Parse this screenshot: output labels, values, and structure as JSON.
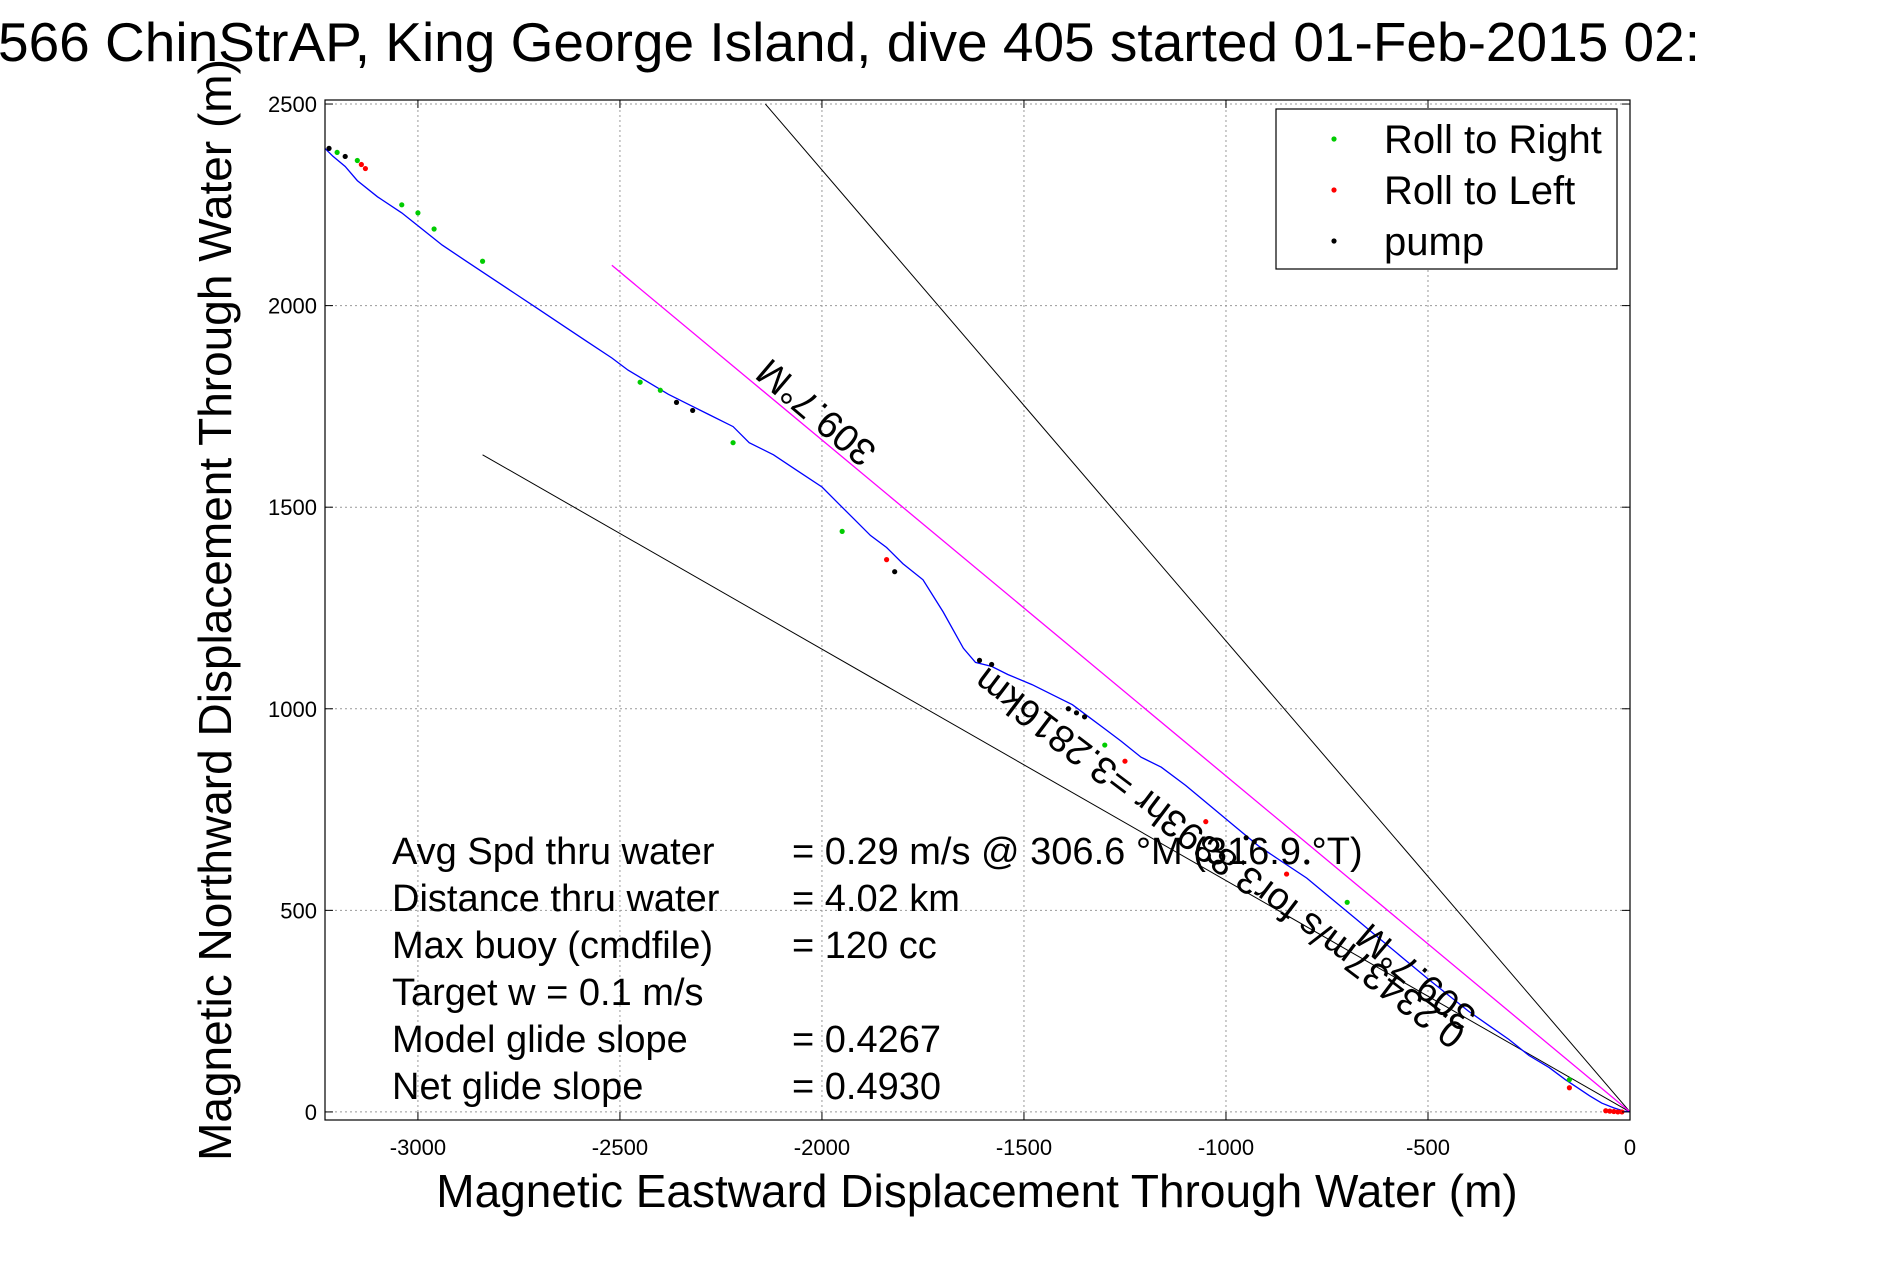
{
  "chart_data": {
    "type": "scatter",
    "title": "566 ChinStrAP, King George Island, dive 405 started 01-Feb-2015 02:",
    "xlabel": "Magnetic Eastward Displacement Through Water (m)",
    "ylabel": "Magnetic Northward Displacement Through Water (m)",
    "xlim": [
      -3230,
      0
    ],
    "ylim": [
      -20,
      2510
    ],
    "xticks": [
      -3000,
      -2500,
      -2000,
      -1500,
      -1000,
      -500,
      0
    ],
    "yticks": [
      0,
      500,
      1000,
      1500,
      2000,
      2500
    ],
    "grid": true,
    "legend": {
      "position": "top-right",
      "entries": [
        "Roll to Right",
        "Roll to Left",
        "pump"
      ]
    },
    "colors": {
      "track": "#0000ff",
      "roll_right": "#00cc00",
      "roll_left": "#ff0000",
      "pump": "#000000",
      "heading_line": "#ff00ff",
      "guide_line": "#000000",
      "grid": "#999999"
    },
    "track": {
      "x": [
        0,
        -15,
        -40,
        -70,
        -100,
        -130,
        -160,
        -200,
        -250,
        -300,
        -350,
        -400,
        -450,
        -500,
        -560,
        -620,
        -680,
        -740,
        -800,
        -860,
        -920,
        -980,
        -1040,
        -1100,
        -1160,
        -1210,
        -1260,
        -1300,
        -1340,
        -1380,
        -1420,
        -1480,
        -1540,
        -1580,
        -1620,
        -1650,
        -1700,
        -1750,
        -1800,
        -1840,
        -1880,
        -1920,
        -1960,
        -2000,
        -2060,
        -2120,
        -2180,
        -2220,
        -2280,
        -2330,
        -2380,
        -2430,
        -2480,
        -2520,
        -2580,
        -2640,
        -2700,
        -2760,
        -2820,
        -2880,
        -2940,
        -2990,
        -3040,
        -3100,
        -3150,
        -3180,
        -3210,
        -3230
      ],
      "y": [
        0,
        2,
        10,
        22,
        40,
        60,
        80,
        110,
        140,
        180,
        215,
        250,
        290,
        330,
        380,
        430,
        480,
        530,
        580,
        620,
        660,
        710,
        760,
        810,
        855,
        880,
        920,
        950,
        980,
        1010,
        1030,
        1060,
        1085,
        1105,
        1115,
        1150,
        1240,
        1320,
        1360,
        1400,
        1430,
        1470,
        1510,
        1550,
        1590,
        1630,
        1660,
        1700,
        1730,
        1755,
        1780,
        1810,
        1840,
        1870,
        1910,
        1950,
        1990,
        2030,
        2070,
        2110,
        2150,
        2190,
        2230,
        2270,
        2310,
        2345,
        2370,
        2390
      ]
    },
    "roll_right": {
      "x": [
        -3200,
        -3150,
        -3040,
        -3000,
        -2960,
        -2840,
        -2450,
        -2400,
        -2220,
        -1950,
        -1300,
        -700,
        -150
      ],
      "y": [
        2380,
        2360,
        2250,
        2230,
        2190,
        2110,
        1810,
        1790,
        1660,
        1440,
        910,
        520,
        80
      ]
    },
    "roll_left": {
      "x": [
        -3140,
        -3130,
        -1840,
        -1250,
        -1050,
        -850,
        -150,
        -60,
        -50,
        -40,
        -30,
        -20
      ],
      "y": [
        2350,
        2340,
        1370,
        870,
        720,
        590,
        60,
        3,
        2,
        1,
        0,
        0
      ]
    },
    "pump": {
      "x": [
        -3220,
        -3180,
        -2360,
        -2320,
        -1820,
        -1610,
        -1580,
        -1390,
        -1370,
        -1350,
        -950,
        -930,
        -800
      ],
      "y": [
        2390,
        2370,
        1760,
        1740,
        1340,
        1120,
        1110,
        1000,
        990,
        980,
        680,
        670,
        620
      ]
    },
    "heading_line": {
      "x": [
        -2520,
        0
      ],
      "y": [
        2100,
        0
      ]
    },
    "guide_lines": [
      {
        "x": [
          -2140,
          0
        ],
        "y": [
          2500,
          0
        ]
      },
      {
        "x": [
          -2840,
          0
        ],
        "y": [
          1630,
          0
        ]
      }
    ],
    "heading_labels": [
      {
        "text": "309.7°M",
        "x": -2010,
        "y": 1740,
        "angle": 220.3
      },
      {
        "text": "309.7°M",
        "x": -525,
        "y": 340,
        "angle": 220.3
      },
      {
        "text": "0.23437m/s for3.8893hr =3.2816km",
        "x": -1012,
        "y": 635,
        "angle": 217.1
      }
    ],
    "stats": [
      {
        "label": "Avg Spd thru water",
        "value": "=  0.29 m/s @ 306.6  °M (316.9 °T)"
      },
      {
        "label": "Distance thru water",
        "value": "=  4.02 km"
      },
      {
        "label": "Max buoy (cmdfile)",
        "value": "= 120 cc"
      },
      {
        "label": "Target w     = 0.1 m/s",
        "value": ""
      },
      {
        "label": "Model glide slope",
        "value": "= 0.4267"
      },
      {
        "label": "Net glide slope",
        "value": "= 0.4930"
      }
    ]
  }
}
